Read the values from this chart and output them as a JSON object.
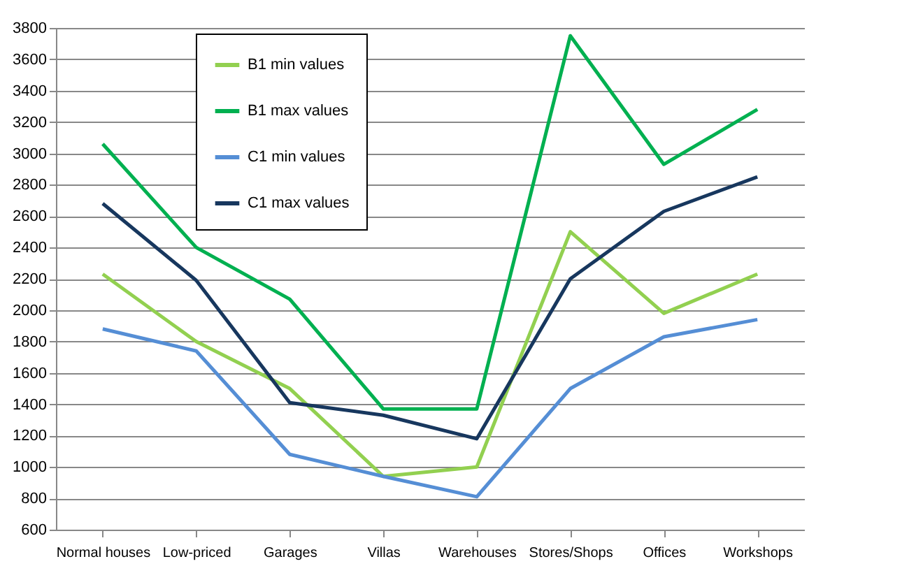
{
  "chart_data": {
    "type": "line",
    "categories": [
      "Normal houses",
      "Low-priced",
      "Garages",
      "Villas",
      "Warehouses",
      "Stores/Shops",
      "Offices",
      "Workshops"
    ],
    "series": [
      {
        "name": "B1 min values",
        "color": "#92d050",
        "values": [
          2230,
          1800,
          1500,
          940,
          1000,
          2500,
          1980,
          2230
        ]
      },
      {
        "name": "B1 max values",
        "color": "#00b050",
        "values": [
          3060,
          2400,
          2070,
          1370,
          1370,
          3750,
          2930,
          3280
        ]
      },
      {
        "name": "C1 min values",
        "color": "#558ed5",
        "values": [
          1880,
          1740,
          1080,
          940,
          810,
          1500,
          1830,
          1940
        ]
      },
      {
        "name": "C1 max values",
        "color": "#17375e",
        "values": [
          2680,
          2190,
          1410,
          1330,
          1180,
          2200,
          2630,
          2850
        ]
      }
    ],
    "ylim": [
      600,
      3800
    ],
    "yticks": [
      600,
      800,
      1000,
      1200,
      1400,
      1600,
      1800,
      2000,
      2200,
      2400,
      2600,
      2800,
      3000,
      3200,
      3400,
      3600,
      3800
    ],
    "grid": "y",
    "legend": "top left",
    "marker": "none",
    "line_style": "solid"
  }
}
